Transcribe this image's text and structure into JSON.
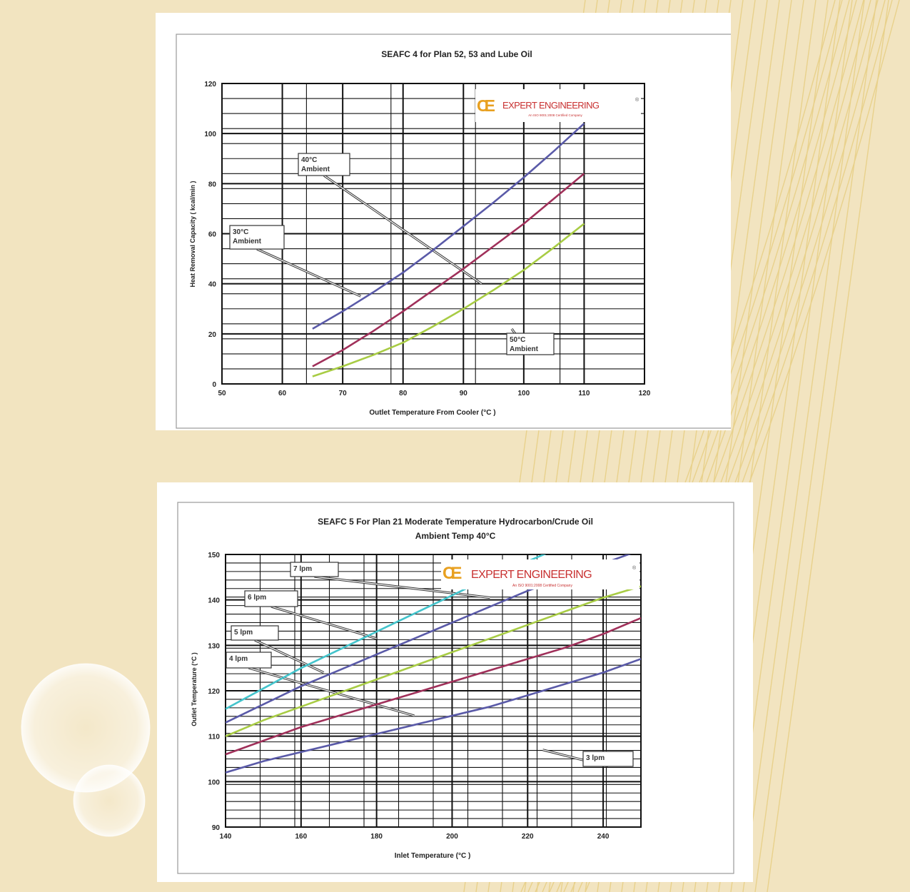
{
  "logo": {
    "mark": "CE",
    "name": "EXPERT ENGINEERING",
    "tagline": "An ISO 9001:2008 Certified Company"
  },
  "chart_data": [
    {
      "type": "line",
      "title": "SEAFC 4 for Plan 52, 53 and Lube Oil",
      "xlabel": "Outlet Temperature From Cooler (°C )",
      "ylabel": "Heat Removal Capacity ( kcal/min )",
      "xlim": [
        50,
        120
      ],
      "ylim": [
        0,
        120
      ],
      "xticks": [
        50,
        60,
        70,
        80,
        90,
        100,
        110,
        120
      ],
      "yticks": [
        0,
        20,
        40,
        60,
        80,
        100,
        120
      ],
      "grid": true,
      "series": [
        {
          "name": "40°C Ambient",
          "color": "#5a5aa8",
          "x": [
            65,
            70,
            75,
            80,
            85,
            90,
            95,
            100,
            105,
            110
          ],
          "y": [
            22,
            29,
            36.5,
            44.5,
            53.5,
            63,
            72.5,
            82.5,
            93,
            104
          ]
        },
        {
          "name": "30°C Ambient",
          "color": "#a0305a",
          "x": [
            65,
            70,
            75,
            80,
            85,
            90,
            95,
            100,
            105,
            110
          ],
          "y": [
            7,
            13.5,
            21,
            29,
            37.5,
            46,
            55,
            64,
            74,
            84
          ]
        },
        {
          "name": "50°C Ambient",
          "color": "#a8cc44",
          "x": [
            65,
            70,
            75,
            80,
            85,
            90,
            95,
            100,
            105,
            110
          ],
          "y": [
            3,
            7,
            11.5,
            16.5,
            23,
            30,
            37.5,
            45.5,
            54.5,
            64
          ]
        }
      ],
      "annotations": [
        {
          "text": [
            "40°C",
            "Ambient"
          ],
          "target": [
            93,
            40
          ]
        },
        {
          "text": [
            "30°C",
            "Ambient"
          ],
          "target": [
            73,
            35
          ]
        },
        {
          "text": [
            "50°C",
            "Ambient"
          ],
          "target": [
            98,
            22
          ]
        }
      ]
    },
    {
      "type": "line",
      "title": "SEAFC 5 For  Plan 21 Moderate Temperature Hydrocarbon/Crude Oil",
      "subtitle": "Ambient Temp 40°C",
      "xlabel": "Inlet Temperature (°C )",
      "ylabel": "Outlet Temperature (°C )",
      "xlim": [
        140,
        250
      ],
      "ylim": [
        90,
        150
      ],
      "xticks": [
        140,
        160,
        180,
        200,
        220,
        240
      ],
      "yticks": [
        90,
        100,
        110,
        120,
        130,
        140,
        150
      ],
      "grid": true,
      "series": [
        {
          "name": "7 lpm",
          "color": "#44c4cc",
          "x": [
            140,
            150,
            160,
            170,
            180,
            190,
            200,
            210,
            220,
            230
          ],
          "y": [
            116,
            120.5,
            125,
            129,
            133,
            137,
            141,
            145,
            148.5,
            152
          ]
        },
        {
          "name": "6 lpm",
          "color": "#5a5aa8",
          "x": [
            140,
            150,
            160,
            170,
            180,
            190,
            200,
            210,
            220,
            230,
            240,
            250
          ],
          "y": [
            113,
            117,
            121,
            124.5,
            128,
            131.5,
            135,
            138.5,
            142,
            145,
            148,
            151
          ]
        },
        {
          "name": "5 lpm",
          "color": "#a8cc44",
          "x": [
            140,
            150,
            160,
            170,
            180,
            190,
            200,
            210,
            220,
            230,
            240,
            250
          ],
          "y": [
            110,
            113.5,
            116.5,
            119.5,
            122.5,
            125.5,
            128.5,
            131.5,
            134.5,
            137.5,
            140.5,
            143
          ]
        },
        {
          "name": "4 lpm",
          "color": "#a0305a",
          "x": [
            140,
            150,
            160,
            170,
            180,
            190,
            200,
            210,
            220,
            230,
            240,
            250
          ],
          "y": [
            106,
            109,
            112,
            114.5,
            117,
            119.5,
            122,
            124.5,
            127,
            129.5,
            132.5,
            136
          ]
        },
        {
          "name": "3 lpm",
          "color": "#5a5aa8",
          "x": [
            140,
            150,
            160,
            170,
            180,
            190,
            200,
            210,
            220,
            230,
            240,
            250
          ],
          "y": [
            102,
            104.5,
            106.5,
            108.5,
            110.5,
            112.5,
            114.5,
            116.5,
            119,
            121.5,
            124,
            127
          ]
        }
      ],
      "annotations": [
        {
          "text": "7 lpm",
          "target": [
            210,
            140.5
          ]
        },
        {
          "text": "6 lpm",
          "target": [
            180,
            131.5
          ]
        },
        {
          "text": "5 lpm",
          "target": [
            166,
            124
          ]
        },
        {
          "text": "4 lpm",
          "target": [
            190,
            114.5
          ]
        },
        {
          "text": "3 lpm",
          "target": [
            224,
            107
          ]
        }
      ]
    }
  ]
}
